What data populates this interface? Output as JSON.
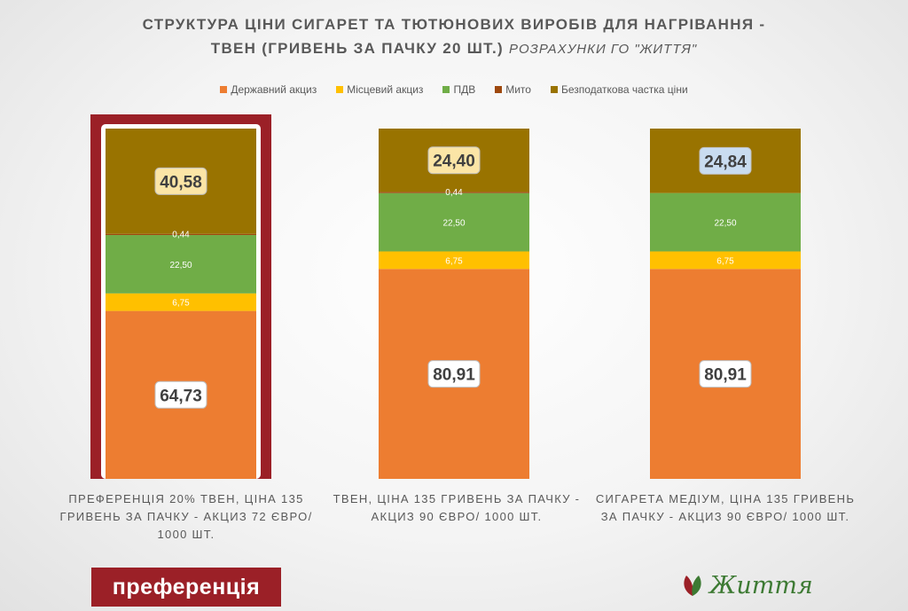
{
  "title_line1": "СТРУКТУРА ЦІНИ СИГАРЕТ ТА ТЮТЮНОВИХ ВИРОБІВ ДЛЯ НАГРІВАННЯ -",
  "title_line2": "ТВЕН (ГРИВЕНЬ ЗА ПАЧКУ 20 ШТ.)",
  "title_sub": "РОЗРАХУНКИ ГО \"ЖИТТЯ\"",
  "badge_label": "преференція",
  "logo_text": "Життя",
  "colors": {
    "state_excise": "#ed7d31",
    "local_excise": "#ffc000",
    "vat": "#70ad47",
    "duty": "#9e480e",
    "tax_free": "#997300",
    "highlight_frame": "#9b2027"
  },
  "chart_data": {
    "type": "bar",
    "stacked": true,
    "categories": [
      "ПРЕФЕРЕНЦІЯ 20% ТВЕН, ЦІНА 135 ГРИВЕНЬ ЗА ПАЧКУ - АКЦИЗ 72 ЄВРО/ 1000 ШТ.",
      "ТВЕН, ЦІНА 135 ГРИВЕНЬ ЗА ПАЧКУ - АКЦИЗ 90 ЄВРО/ 1000 ШТ.",
      "СИГАРЕТА МЕДІУМ, ЦІНА 135 ГРИВЕНЬ ЗА ПАЧКУ - АКЦИЗ 90 ЄВРО/ 1000 ШТ."
    ],
    "series": [
      {
        "name": "Державний акциз",
        "values": [
          64.73,
          80.91,
          80.91
        ],
        "labels": [
          "64,73",
          "80,91",
          "80,91"
        ]
      },
      {
        "name": "Місцевий акциз",
        "values": [
          6.75,
          6.75,
          6.75
        ],
        "labels": [
          "6,75",
          "6,75",
          "6,75"
        ]
      },
      {
        "name": "ПДВ",
        "values": [
          22.5,
          22.5,
          22.5
        ],
        "labels": [
          "22,50",
          "22,50",
          "22,50"
        ]
      },
      {
        "name": "Мито",
        "values": [
          0.44,
          0.44,
          0
        ],
        "labels": [
          "0,44",
          "0,44",
          ""
        ]
      },
      {
        "name": "Безподаткова частка ціни",
        "values": [
          40.58,
          24.4,
          24.84
        ],
        "labels": [
          "40,58",
          "24,40",
          "24,84"
        ]
      }
    ],
    "total": 135,
    "highlighted_category": 0,
    "legend_position": "top",
    "grid": false
  }
}
